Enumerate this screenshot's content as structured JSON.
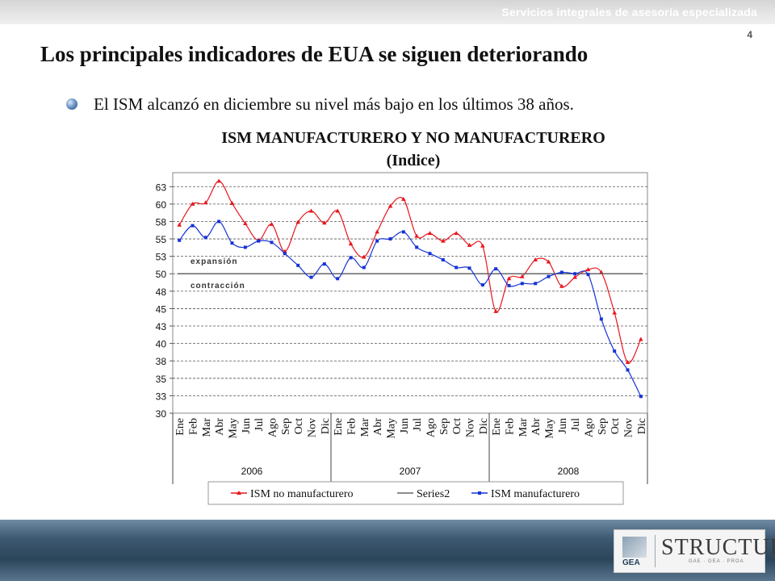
{
  "header": {
    "tagline": "Servicios integrales de asesoría especializada",
    "page_number": "4"
  },
  "slide": {
    "title": "Los principales indicadores de EUA se siguen deteriorando",
    "bullet": "El ISM alcanzó en diciembre su nivel más bajo en los últimos 38 años."
  },
  "chart_data": {
    "type": "line",
    "title": "ISM MANUFACTURERO Y NO MANUFACTURERO",
    "subtitle": "(Indice)",
    "categories": [
      "Ene",
      "Feb",
      "Mar",
      "Abr",
      "May",
      "Jun",
      "Jul",
      "Ago",
      "Sep",
      "Oct",
      "Nov",
      "Dic",
      "Ene",
      "Feb",
      "Mar",
      "Abr",
      "May",
      "Jun",
      "Jul",
      "Ago",
      "Sep",
      "Oct",
      "Nov",
      "Dic",
      "Ene",
      "Feb",
      "Mar",
      "Abr",
      "May",
      "Jun",
      "Jul",
      "Ago",
      "Sep",
      "Oct",
      "Nov",
      "Dic"
    ],
    "years": [
      {
        "label": "2006",
        "start": 0,
        "end": 11
      },
      {
        "label": "2007",
        "start": 12,
        "end": 23
      },
      {
        "label": "2008",
        "start": 24,
        "end": 35
      }
    ],
    "yticks": [
      "30",
      "33",
      "35",
      "38",
      "40",
      "43",
      "45",
      "48",
      "50",
      "53",
      "55",
      "58",
      "60",
      "63"
    ],
    "ylim": [
      30,
      64.5
    ],
    "grid": true,
    "legend_position": "bottom",
    "series": [
      {
        "name": "ISM no manufacturero",
        "color": "#e8161d",
        "marker": "triangle",
        "values": [
          57.0,
          60.0,
          60.2,
          63.3,
          60.1,
          57.2,
          54.8,
          57.1,
          53.2,
          57.4,
          59.0,
          57.3,
          59.0,
          54.3,
          52.4,
          56.0,
          59.7,
          60.7,
          55.4,
          55.8,
          54.7,
          55.8,
          54.1,
          54.0,
          44.6,
          49.3,
          49.6,
          52.0,
          51.7,
          48.2,
          49.5,
          50.6,
          50.2,
          44.4,
          37.3,
          40.6
        ]
      },
      {
        "name": "Series2",
        "color": "#666666",
        "marker": "none",
        "values": [
          50,
          50,
          50,
          50,
          50,
          50,
          50,
          50,
          50,
          50,
          50,
          50,
          50,
          50,
          50,
          50,
          50,
          50,
          50,
          50,
          50,
          50,
          50,
          50,
          50,
          50,
          50,
          50,
          50,
          50,
          50,
          50,
          50,
          50,
          50,
          50
        ]
      },
      {
        "name": "ISM manufacturero",
        "color": "#1633d6",
        "marker": "square",
        "values": [
          54.8,
          56.9,
          55.2,
          57.5,
          54.4,
          53.8,
          54.7,
          54.5,
          52.9,
          51.2,
          49.5,
          51.4,
          49.3,
          52.3,
          50.9,
          54.7,
          55.0,
          56.0,
          53.8,
          52.9,
          52.0,
          50.9,
          50.8,
          48.4,
          50.7,
          48.3,
          48.6,
          48.6,
          49.6,
          50.2,
          50.0,
          49.9,
          43.5,
          38.9,
          36.2,
          32.4
        ]
      }
    ],
    "annotations": [
      "expansión",
      "contracción"
    ]
  },
  "branding": {
    "gea_label": "GEA",
    "structura_label": "STRUCTURA",
    "structura_sub": "GAE · GEA · PROA"
  }
}
